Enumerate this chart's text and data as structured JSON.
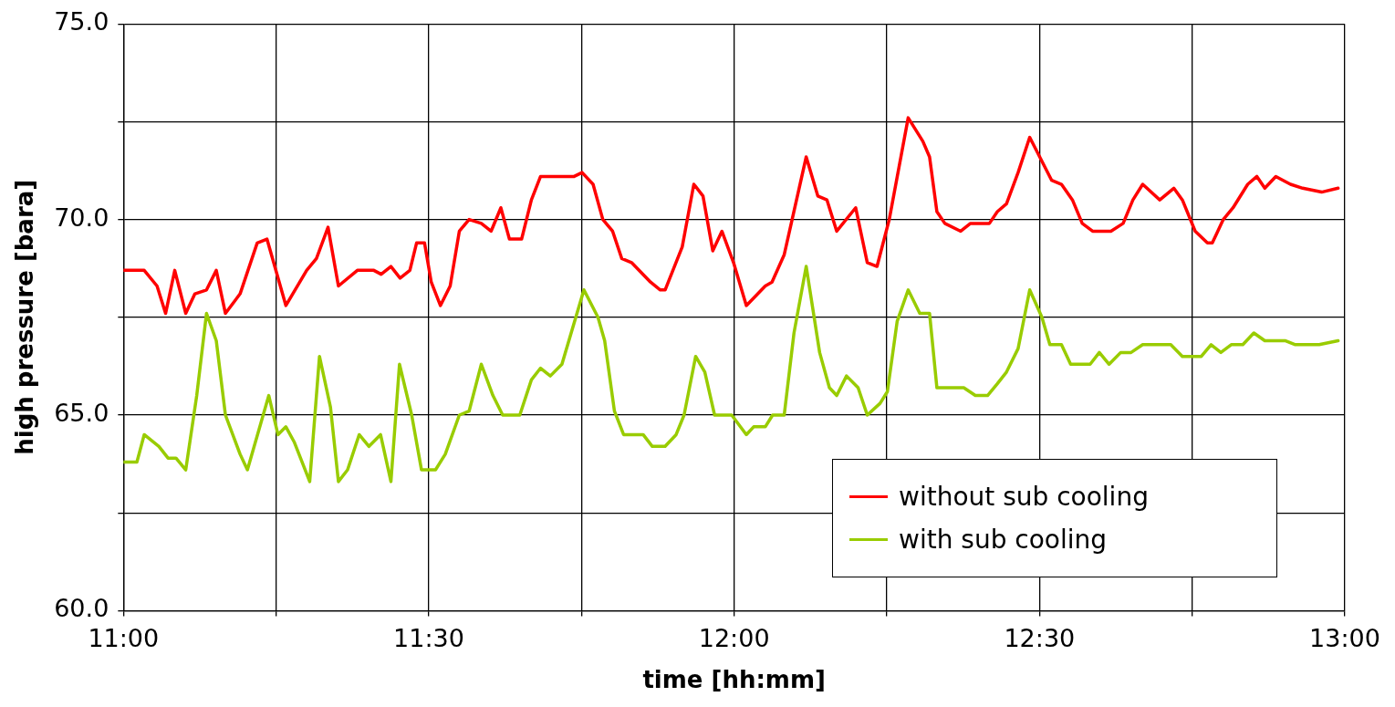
{
  "chart_data": {
    "type": "line",
    "xlabel": "time [hh:mm]",
    "ylabel": "high pressure [bara]",
    "xlim": [
      11,
      13
    ],
    "xticks": [
      {
        "value": 11,
        "label": "11:00"
      },
      {
        "value": 11.25,
        "label": null
      },
      {
        "value": 11.5,
        "label": "11:30"
      },
      {
        "value": 11.75,
        "label": null
      },
      {
        "value": 12,
        "label": "12:00"
      },
      {
        "value": 12.25,
        "label": null
      },
      {
        "value": 12.5,
        "label": "12:30"
      },
      {
        "value": 12.75,
        "label": null
      },
      {
        "value": 13,
        "label": "13:00"
      }
    ],
    "ylim": [
      60,
      75
    ],
    "yticks": [
      {
        "value": 60,
        "label": "60.0"
      },
      {
        "value": 62.5,
        "label": null
      },
      {
        "value": 65,
        "label": "65.0"
      },
      {
        "value": 67.5,
        "label": null
      },
      {
        "value": 70,
        "label": "70.0"
      },
      {
        "value": 72.5,
        "label": null
      },
      {
        "value": 75,
        "label": "75.0"
      }
    ],
    "grid": true,
    "legend": "bottom right",
    "marker": "none",
    "line_style": "solid",
    "series": [
      {
        "name": "without sub cooling",
        "color": "#ff0000",
        "x": [
          11.0,
          11.034,
          11.055,
          11.069,
          11.084,
          11.102,
          11.117,
          11.136,
          11.152,
          11.167,
          11.191,
          11.219,
          11.235,
          11.266,
          11.3,
          11.316,
          11.335,
          11.352,
          11.383,
          11.41,
          11.422,
          11.438,
          11.453,
          11.469,
          11.48,
          11.493,
          11.504,
          11.519,
          11.535,
          11.55,
          11.566,
          11.586,
          11.602,
          11.618,
          11.632,
          11.652,
          11.668,
          11.683,
          11.715,
          11.738,
          11.751,
          11.769,
          11.785,
          11.801,
          11.816,
          11.832,
          11.863,
          11.879,
          11.887,
          11.915,
          11.934,
          11.949,
          11.965,
          11.98,
          11.999,
          12.02,
          12.051,
          12.062,
          12.082,
          12.118,
          12.137,
          12.152,
          12.168,
          12.199,
          12.218,
          12.234,
          12.254,
          12.285,
          12.309,
          12.32,
          12.332,
          12.345,
          12.371,
          12.387,
          12.403,
          12.418,
          12.431,
          12.446,
          12.465,
          12.484,
          12.52,
          12.536,
          12.554,
          12.57,
          12.587,
          12.617,
          12.637,
          12.653,
          12.669,
          12.697,
          12.72,
          12.734,
          12.755,
          12.775,
          12.783,
          12.801,
          12.817,
          12.841,
          12.856,
          12.869,
          12.887,
          12.911,
          12.931,
          12.962,
          12.989
        ],
        "values": [
          68.7,
          68.7,
          68.3,
          67.6,
          68.7,
          67.6,
          68.1,
          68.2,
          68.7,
          67.6,
          68.1,
          69.4,
          69.5,
          67.8,
          68.7,
          69.0,
          69.8,
          68.3,
          68.7,
          68.7,
          68.6,
          68.8,
          68.5,
          68.7,
          69.4,
          69.4,
          68.4,
          67.8,
          68.3,
          69.7,
          70.0,
          69.9,
          69.7,
          70.3,
          69.5,
          69.5,
          70.5,
          71.1,
          71.1,
          71.1,
          71.2,
          70.9,
          70.0,
          69.7,
          69.0,
          68.9,
          68.4,
          68.2,
          68.2,
          69.3,
          70.9,
          70.6,
          69.2,
          69.7,
          68.9,
          67.8,
          68.3,
          68.4,
          69.1,
          71.6,
          70.6,
          70.5,
          69.7,
          70.3,
          68.9,
          68.8,
          70.0,
          72.6,
          72.0,
          71.6,
          70.2,
          69.9,
          69.7,
          69.9,
          69.9,
          69.9,
          70.2,
          70.4,
          71.2,
          72.1,
          71.0,
          70.9,
          70.5,
          69.9,
          69.7,
          69.7,
          69.9,
          70.5,
          70.9,
          70.5,
          70.8,
          70.5,
          69.7,
          69.4,
          69.4,
          70.0,
          70.3,
          70.9,
          71.1,
          70.8,
          71.1,
          70.9,
          70.8,
          70.7,
          70.8
        ]
      },
      {
        "name": "with sub cooling",
        "color": "#99cc00",
        "x": [
          11.0,
          11.022,
          11.034,
          11.058,
          11.073,
          11.086,
          11.102,
          11.12,
          11.136,
          11.152,
          11.167,
          11.191,
          11.203,
          11.238,
          11.253,
          11.266,
          11.28,
          11.305,
          11.321,
          11.339,
          11.352,
          11.367,
          11.386,
          11.402,
          11.421,
          11.438,
          11.452,
          11.472,
          11.488,
          11.511,
          11.527,
          11.55,
          11.566,
          11.586,
          11.605,
          11.621,
          11.649,
          11.668,
          11.683,
          11.699,
          11.718,
          11.754,
          11.777,
          11.788,
          11.804,
          11.819,
          11.851,
          11.866,
          11.887,
          11.905,
          11.918,
          11.937,
          11.952,
          11.968,
          11.996,
          12.02,
          12.032,
          12.051,
          12.063,
          12.082,
          12.098,
          12.118,
          12.14,
          12.156,
          12.168,
          12.184,
          12.203,
          12.218,
          12.239,
          12.251,
          12.267,
          12.285,
          12.304,
          12.32,
          12.332,
          12.376,
          12.395,
          12.415,
          12.431,
          12.446,
          12.465,
          12.484,
          12.504,
          12.517,
          12.536,
          12.551,
          12.583,
          12.598,
          12.614,
          12.633,
          12.65,
          12.669,
          12.715,
          12.734,
          12.765,
          12.781,
          12.797,
          12.814,
          12.833,
          12.851,
          12.869,
          12.903,
          12.919,
          12.958,
          12.989
        ],
        "values": [
          63.8,
          63.8,
          64.5,
          64.2,
          63.9,
          63.9,
          63.6,
          65.5,
          67.6,
          66.9,
          65.0,
          64.0,
          63.6,
          65.5,
          64.5,
          64.7,
          64.3,
          63.3,
          66.5,
          65.2,
          63.3,
          63.6,
          64.5,
          64.2,
          64.5,
          63.3,
          66.3,
          65.0,
          63.6,
          63.6,
          64.0,
          65.0,
          65.1,
          66.3,
          65.5,
          65.0,
          65.0,
          65.9,
          66.2,
          66.0,
          66.3,
          68.2,
          67.5,
          66.9,
          65.1,
          64.5,
          64.5,
          64.2,
          64.2,
          64.5,
          65.0,
          66.5,
          66.1,
          65.0,
          65.0,
          64.5,
          64.7,
          64.7,
          65.0,
          65.0,
          67.1,
          68.8,
          66.6,
          65.7,
          65.5,
          66.0,
          65.7,
          65.0,
          65.3,
          65.6,
          67.4,
          68.2,
          67.6,
          67.6,
          65.7,
          65.7,
          65.5,
          65.5,
          65.8,
          66.1,
          66.7,
          68.2,
          67.5,
          66.8,
          66.8,
          66.3,
          66.3,
          66.6,
          66.3,
          66.6,
          66.6,
          66.8,
          66.8,
          66.5,
          66.5,
          66.8,
          66.6,
          66.8,
          66.8,
          67.1,
          66.9,
          66.9,
          66.8,
          66.8,
          66.9
        ]
      }
    ]
  }
}
